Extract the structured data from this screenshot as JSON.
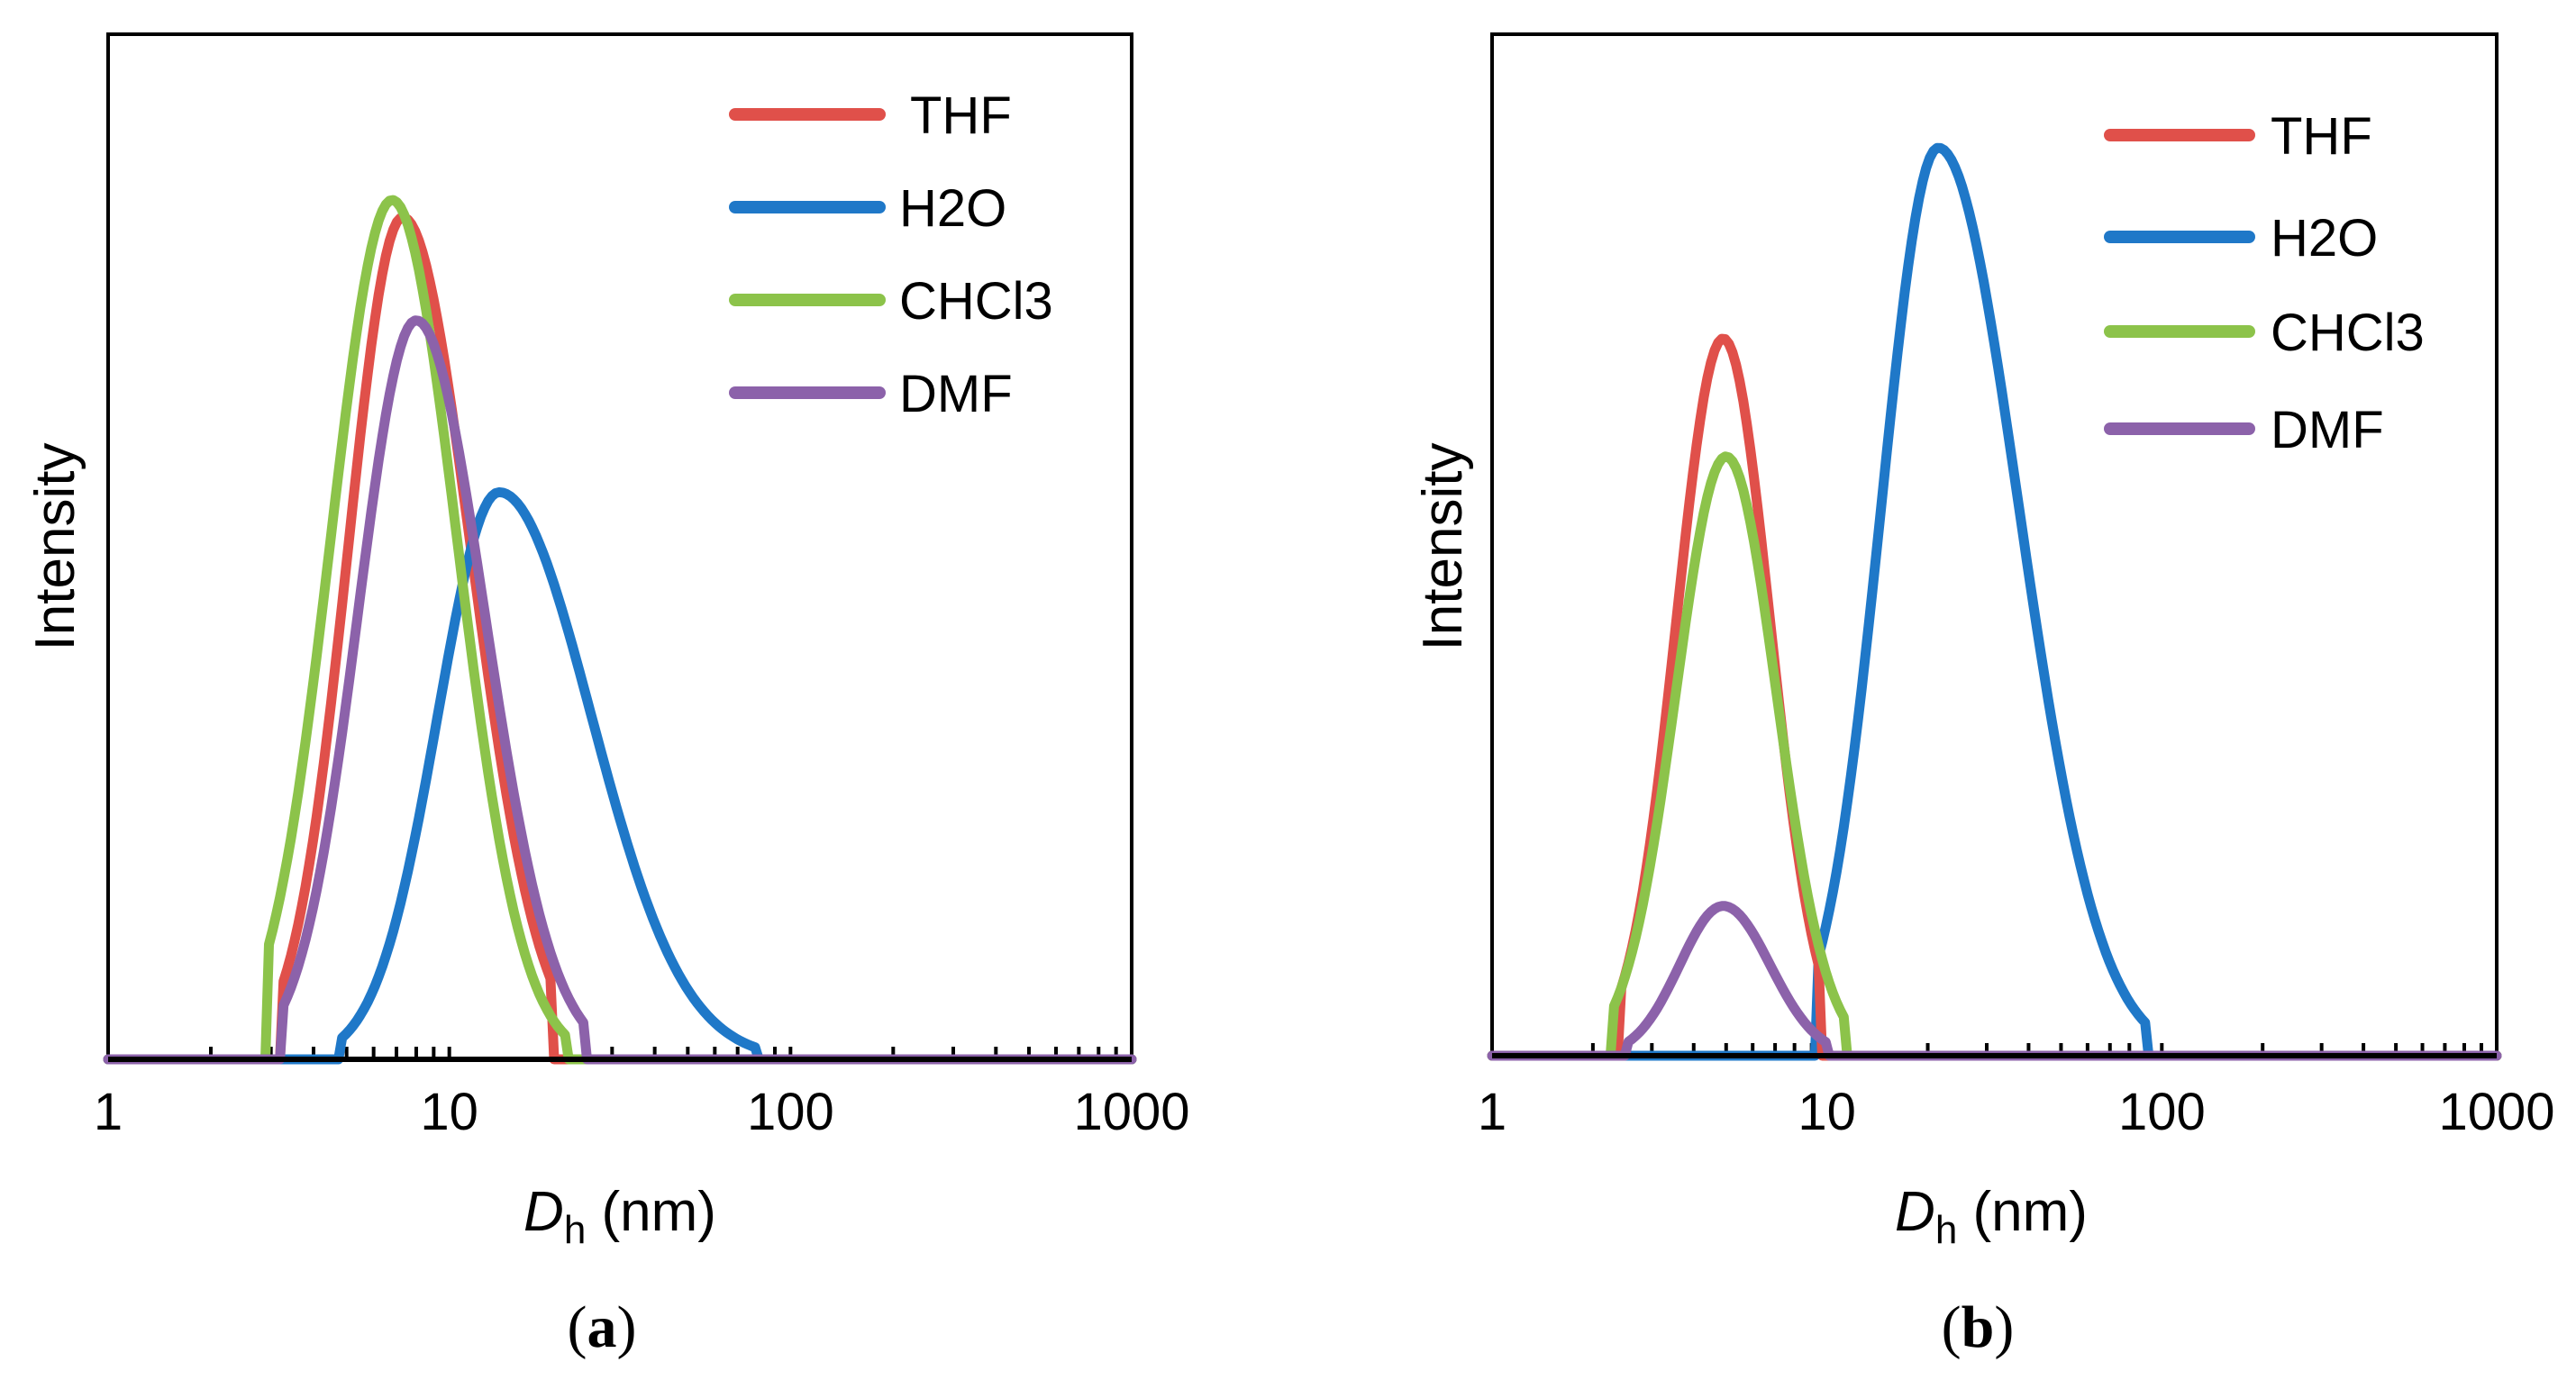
{
  "colors": {
    "THF": "#e0504a",
    "H2O": "#1f78c8",
    "CHCl3": "#8cc34a",
    "DMF": "#8c62aa",
    "axis": "#000000"
  },
  "chart_data": [
    {
      "panel": "a",
      "type": "line",
      "caption_letter": "a",
      "caption_open": "(",
      "caption_close": ")",
      "xscale": "log",
      "xlim": [
        1,
        1000
      ],
      "ylim": [
        0,
        1
      ],
      "xlabel_main": "D",
      "xlabel_sub": "h",
      "xlabel_unit": " (nm)",
      "ylabel": "Intensity",
      "xticklabels": [
        {
          "value": 1,
          "label": "1"
        },
        {
          "value": 10,
          "label": "10"
        },
        {
          "value": 100,
          "label": "100"
        },
        {
          "value": 1000,
          "label": "1000"
        }
      ],
      "legend": [
        "THF",
        "H2O",
        "CHCl3",
        "DMF"
      ],
      "series": [
        {
          "name": "THF",
          "peak": 7.3,
          "height": 0.98,
          "left_width": 0.16,
          "right_width": 0.2,
          "x_min": 3.2,
          "x_max": 20
        },
        {
          "name": "H2O",
          "peak": 14,
          "height": 0.66,
          "left_width": 0.18,
          "right_width": 0.27,
          "x_min": 4.8,
          "x_max": 80
        },
        {
          "name": "CHCl3",
          "peak": 6.8,
          "height": 1.0,
          "left_width": 0.18,
          "right_width": 0.19,
          "x_min": 2.9,
          "x_max": 22
        },
        {
          "name": "DMF",
          "peak": 8.0,
          "height": 0.86,
          "left_width": 0.17,
          "right_width": 0.2,
          "x_min": 3.2,
          "x_max": 25
        }
      ]
    },
    {
      "panel": "b",
      "type": "line",
      "caption_letter": "b",
      "caption_open": "(",
      "caption_close": ")",
      "xscale": "log",
      "xlim": [
        1,
        1000
      ],
      "ylim": [
        0,
        1
      ],
      "xlabel_main": "D",
      "xlabel_sub": "h",
      "xlabel_unit": " (nm)",
      "ylabel": "Intensity",
      "xticklabels": [
        {
          "value": 1,
          "label": "1"
        },
        {
          "value": 10,
          "label": "10"
        },
        {
          "value": 100,
          "label": "100"
        },
        {
          "value": 1000,
          "label": "1000"
        }
      ],
      "legend": [
        "THF",
        "H2O",
        "CHCl3",
        "DMF"
      ],
      "series": [
        {
          "name": "H2O",
          "peak": 21.5,
          "height": 1.0,
          "left_width": 0.17,
          "right_width": 0.24,
          "x_min": 9.3,
          "x_max": 90
        },
        {
          "name": "THF",
          "peak": 4.9,
          "height": 0.79,
          "left_width": 0.14,
          "right_width": 0.14,
          "x_min": 2.4,
          "x_max": 9.5
        },
        {
          "name": "CHCl3",
          "peak": 5.0,
          "height": 0.66,
          "left_width": 0.15,
          "right_width": 0.15,
          "x_min": 2.3,
          "x_max": 11.5
        },
        {
          "name": "DMF",
          "peak": 4.9,
          "height": 0.165,
          "left_width": 0.13,
          "right_width": 0.14,
          "x_min": 2.5,
          "x_max": 10
        }
      ]
    }
  ]
}
